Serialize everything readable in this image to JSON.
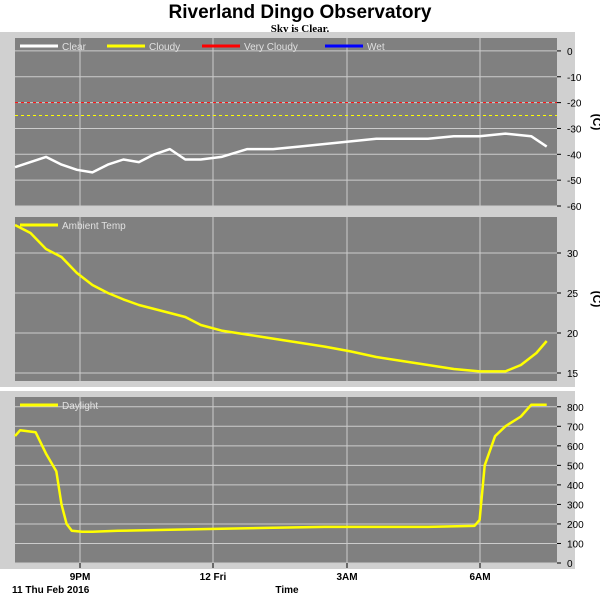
{
  "title": "Riverland Dingo Observatory",
  "subtitle": "Sky is Clear.",
  "x_label": "Time",
  "date_label": "11 Thu Feb 2016",
  "x_ticks": [
    "9PM",
    "12 Fri",
    "3AM",
    "6AM"
  ],
  "colors": {
    "panel_bg": "#808080",
    "grid": "#cccccc",
    "clear": "#ffffff",
    "cloudy": "#ffff00",
    "very_cloudy": "#ff0000",
    "wet": "#0000ff"
  },
  "chart_data": [
    {
      "type": "line",
      "name": "sky",
      "unit": "(C)",
      "ylim": [
        -60,
        5
      ],
      "y_ticks": [
        0,
        -10,
        -20,
        -30,
        -40,
        -50,
        -60
      ],
      "legend": [
        "Clear",
        "Cloudy",
        "Very Cloudy",
        "Wet"
      ],
      "thresholds": [
        {
          "value": -20,
          "color": "#ff0000"
        },
        {
          "value": -25,
          "color": "#ffff00"
        }
      ],
      "series": [
        {
          "name": "Clear",
          "color": "#ffffff",
          "x": [
            0,
            0.3,
            0.6,
            0.9,
            1.2,
            1.5,
            1.8,
            2.1,
            2.4,
            2.7,
            3.0,
            3.3,
            3.6,
            4.0,
            4.5,
            5.0,
            5.5,
            6.0,
            6.5,
            7.0,
            7.5,
            8.0,
            8.5,
            9.0,
            9.5,
            10.0,
            10.3
          ],
          "y": [
            -45,
            -43,
            -41,
            -44,
            -46,
            -47,
            -44,
            -42,
            -43,
            -40,
            -38,
            -42,
            -42,
            -41,
            -38,
            -38,
            -37,
            -36,
            -35,
            -34,
            -34,
            -34,
            -33,
            -33,
            -32,
            -33,
            -37
          ]
        }
      ]
    },
    {
      "type": "line",
      "name": "ambient",
      "unit": "(C)",
      "ylim": [
        14,
        34.5
      ],
      "y_ticks": [
        15,
        20,
        25,
        30
      ],
      "legend": [
        "Ambient Temp"
      ],
      "series": [
        {
          "name": "Ambient Temp",
          "color": "#ffff00",
          "x": [
            0,
            0.3,
            0.6,
            0.9,
            1.2,
            1.5,
            1.8,
            2.1,
            2.4,
            2.7,
            3.0,
            3.3,
            3.6,
            4.0,
            4.5,
            5.0,
            5.5,
            6.0,
            6.5,
            7.0,
            7.5,
            8.0,
            8.5,
            9.0,
            9.5,
            9.8,
            10.1,
            10.3
          ],
          "y": [
            33.5,
            32.5,
            30.5,
            29.5,
            27.5,
            26.0,
            25.0,
            24.2,
            23.5,
            23.0,
            22.5,
            22.0,
            21.0,
            20.3,
            19.8,
            19.3,
            18.8,
            18.3,
            17.7,
            17.0,
            16.5,
            16.0,
            15.5,
            15.2,
            15.2,
            16.0,
            17.5,
            19.0
          ]
        }
      ]
    },
    {
      "type": "line",
      "name": "daylight",
      "unit": "",
      "ylim": [
        0,
        850
      ],
      "y_ticks": [
        0,
        100,
        200,
        300,
        400,
        500,
        600,
        700,
        800
      ],
      "legend": [
        "Daylight"
      ],
      "series": [
        {
          "name": "Daylight",
          "color": "#ffff00",
          "x": [
            0,
            0.1,
            0.4,
            0.6,
            0.8,
            0.9,
            1.0,
            1.1,
            1.3,
            1.5,
            2.0,
            3.0,
            4.0,
            5.0,
            6.0,
            7.0,
            8.0,
            8.9,
            9.0,
            9.1,
            9.3,
            9.5,
            9.8,
            10.0,
            10.3
          ],
          "y": [
            650,
            680,
            670,
            560,
            470,
            300,
            200,
            165,
            160,
            160,
            165,
            170,
            175,
            180,
            185,
            185,
            185,
            190,
            220,
            500,
            650,
            700,
            750,
            810,
            810
          ]
        }
      ]
    }
  ]
}
